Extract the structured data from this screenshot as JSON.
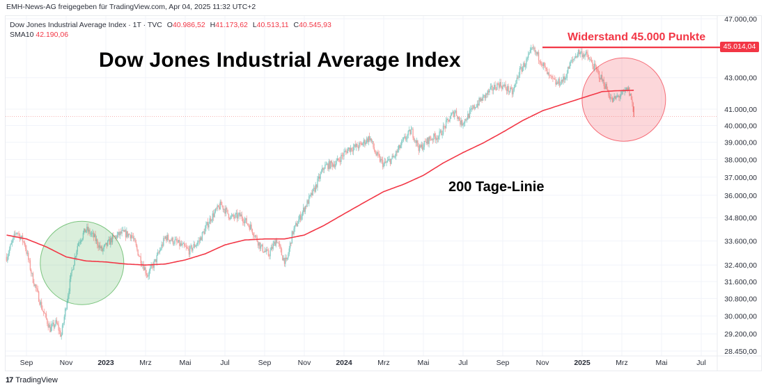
{
  "attribution": "EMH-News-AG freigegeben für TradingView.com, Apr 04, 2025 11:32 UTC+2",
  "legend": {
    "symbol": "Dow Jones Industrial Average Index · 1T · TVC",
    "open_label": "O",
    "open": "40.986,52",
    "high_label": "H",
    "high": "41.173,62",
    "low_label": "L",
    "low": "40.513,11",
    "close_label": "C",
    "close": "40.545,93",
    "sma_label": "SMA10",
    "sma_value": "42.190,06"
  },
  "annotations": {
    "title": "Dow Jones Industrial Average Index",
    "ma_label": "200 Tage-Linie",
    "resistance_label": "Widerstand 45.000 Punkte",
    "resistance_price_tag": "45.014,04"
  },
  "footer": {
    "logo_mark": "17",
    "logo_text": "TradingView"
  },
  "colors": {
    "up": "#26a69a",
    "down": "#ef5350",
    "ma": "#f23645",
    "accent": "#f23645",
    "green_circle": "#4caf50",
    "red_circle": "#f23645"
  },
  "chart_data": {
    "type": "candlestick",
    "title": "Dow Jones Industrial Average Index",
    "interval": "1D",
    "y_scale": "log",
    "ylim": [
      28450,
      47000
    ],
    "y_ticks": [
      {
        "value": 47000,
        "label": "47.000,00"
      },
      {
        "value": 43000,
        "label": "43.000,00"
      },
      {
        "value": 41000,
        "label": "41.000,00"
      },
      {
        "value": 40000,
        "label": "40.000,00"
      },
      {
        "value": 39000,
        "label": "39.000,00"
      },
      {
        "value": 38000,
        "label": "38.000,00"
      },
      {
        "value": 37000,
        "label": "37.000,00"
      },
      {
        "value": 36000,
        "label": "36.000,00"
      },
      {
        "value": 34800,
        "label": "34.800,00"
      },
      {
        "value": 33600,
        "label": "33.600,00"
      },
      {
        "value": 32400,
        "label": "32.400,00"
      },
      {
        "value": 31600,
        "label": "31.600,00"
      },
      {
        "value": 30800,
        "label": "30.800,00"
      },
      {
        "value": 30000,
        "label": "30.000,00"
      },
      {
        "value": 29200,
        "label": "29.200,00"
      },
      {
        "value": 28450,
        "label": "28.450,00"
      }
    ],
    "x_range_months": [
      "2022-08",
      "2025-08"
    ],
    "x_ticks": [
      {
        "month": "2022-09",
        "label": "Sep",
        "bold": false
      },
      {
        "month": "2022-11",
        "label": "Nov",
        "bold": false
      },
      {
        "month": "2023-01",
        "label": "2023",
        "bold": true
      },
      {
        "month": "2023-03",
        "label": "Mrz",
        "bold": false
      },
      {
        "month": "2023-05",
        "label": "Mai",
        "bold": false
      },
      {
        "month": "2023-07",
        "label": "Jul",
        "bold": false
      },
      {
        "month": "2023-09",
        "label": "Sep",
        "bold": false
      },
      {
        "month": "2023-11",
        "label": "Nov",
        "bold": false
      },
      {
        "month": "2024-01",
        "label": "2024",
        "bold": true
      },
      {
        "month": "2024-03",
        "label": "Mrz",
        "bold": false
      },
      {
        "month": "2024-05",
        "label": "Mai",
        "bold": false
      },
      {
        "month": "2024-07",
        "label": "Jul",
        "bold": false
      },
      {
        "month": "2024-09",
        "label": "Sep",
        "bold": false
      },
      {
        "month": "2024-11",
        "label": "Nov",
        "bold": false
      },
      {
        "month": "2025-01",
        "label": "2025",
        "bold": true
      },
      {
        "month": "2025-03",
        "label": "Mrz",
        "bold": false
      },
      {
        "month": "2025-05",
        "label": "Mai",
        "bold": false
      },
      {
        "month": "2025-07",
        "label": "Jul",
        "bold": false
      }
    ],
    "price_path": [
      {
        "t": 0.0,
        "p": 32800
      },
      {
        "t": 0.5,
        "p": 34100
      },
      {
        "t": 0.9,
        "p": 33500
      },
      {
        "t": 1.3,
        "p": 31800
      },
      {
        "t": 1.8,
        "p": 30300
      },
      {
        "t": 2.2,
        "p": 29400
      },
      {
        "t": 2.5,
        "p": 29700
      },
      {
        "t": 2.75,
        "p": 29100
      },
      {
        "t": 3.0,
        "p": 30500
      },
      {
        "t": 3.3,
        "p": 32200
      },
      {
        "t": 3.6,
        "p": 33500
      },
      {
        "t": 4.0,
        "p": 34200
      },
      {
        "t": 4.4,
        "p": 33800
      },
      {
        "t": 4.8,
        "p": 33100
      },
      {
        "t": 5.3,
        "p": 33700
      },
      {
        "t": 5.8,
        "p": 34000
      },
      {
        "t": 6.3,
        "p": 33900
      },
      {
        "t": 6.7,
        "p": 32800
      },
      {
        "t": 7.1,
        "p": 31900
      },
      {
        "t": 7.5,
        "p": 32600
      },
      {
        "t": 8.0,
        "p": 33800
      },
      {
        "t": 8.6,
        "p": 33500
      },
      {
        "t": 9.2,
        "p": 33100
      },
      {
        "t": 9.7,
        "p": 33600
      },
      {
        "t": 10.3,
        "p": 34800
      },
      {
        "t": 10.8,
        "p": 35500
      },
      {
        "t": 11.3,
        "p": 34800
      },
      {
        "t": 11.8,
        "p": 34900
      },
      {
        "t": 12.3,
        "p": 34300
      },
      {
        "t": 12.8,
        "p": 33300
      },
      {
        "t": 13.2,
        "p": 32900
      },
      {
        "t": 13.6,
        "p": 33700
      },
      {
        "t": 13.9,
        "p": 32800
      },
      {
        "t": 14.1,
        "p": 32500
      },
      {
        "t": 14.4,
        "p": 34000
      },
      {
        "t": 15.0,
        "p": 35300
      },
      {
        "t": 15.5,
        "p": 36300
      },
      {
        "t": 16.0,
        "p": 37600
      },
      {
        "t": 16.6,
        "p": 37800
      },
      {
        "t": 17.2,
        "p": 38600
      },
      {
        "t": 17.8,
        "p": 38800
      },
      {
        "t": 18.3,
        "p": 39300
      },
      {
        "t": 18.6,
        "p": 38300
      },
      {
        "t": 19.0,
        "p": 37700
      },
      {
        "t": 19.5,
        "p": 38100
      },
      {
        "t": 20.0,
        "p": 39100
      },
      {
        "t": 20.4,
        "p": 39700
      },
      {
        "t": 20.8,
        "p": 38600
      },
      {
        "t": 21.3,
        "p": 39200
      },
      {
        "t": 21.8,
        "p": 39400
      },
      {
        "t": 22.3,
        "p": 40400
      },
      {
        "t": 22.6,
        "p": 40900
      },
      {
        "t": 22.9,
        "p": 40100
      },
      {
        "t": 23.2,
        "p": 40500
      },
      {
        "t": 23.6,
        "p": 41200
      },
      {
        "t": 24.0,
        "p": 41700
      },
      {
        "t": 24.4,
        "p": 42200
      },
      {
        "t": 24.8,
        "p": 42600
      },
      {
        "t": 25.2,
        "p": 42300
      },
      {
        "t": 25.5,
        "p": 42000
      },
      {
        "t": 25.8,
        "p": 43300
      },
      {
        "t": 26.2,
        "p": 44100
      },
      {
        "t": 26.5,
        "p": 44900
      },
      {
        "t": 26.9,
        "p": 44200
      },
      {
        "t": 27.3,
        "p": 43100
      },
      {
        "t": 27.7,
        "p": 42600
      },
      {
        "t": 28.1,
        "p": 42900
      },
      {
        "t": 28.4,
        "p": 43900
      },
      {
        "t": 28.8,
        "p": 44700
      },
      {
        "t": 29.2,
        "p": 44500
      },
      {
        "t": 29.5,
        "p": 43900
      },
      {
        "t": 29.8,
        "p": 43300
      },
      {
        "t": 30.2,
        "p": 42400
      },
      {
        "t": 30.5,
        "p": 41500
      },
      {
        "t": 30.8,
        "p": 41800
      },
      {
        "t": 31.1,
        "p": 42000
      },
      {
        "t": 31.3,
        "p": 42300
      },
      {
        "t": 31.5,
        "p": 41600
      },
      {
        "t": 31.6,
        "p": 40546
      }
    ],
    "sma200_path": [
      {
        "t": 0.0,
        "p": 33900
      },
      {
        "t": 1.0,
        "p": 33700
      },
      {
        "t": 2.0,
        "p": 33300
      },
      {
        "t": 3.0,
        "p": 32800
      },
      {
        "t": 4.0,
        "p": 32600
      },
      {
        "t": 5.0,
        "p": 32550
      },
      {
        "t": 6.0,
        "p": 32450
      },
      {
        "t": 7.0,
        "p": 32400
      },
      {
        "t": 8.0,
        "p": 32450
      },
      {
        "t": 9.0,
        "p": 32650
      },
      {
        "t": 10.0,
        "p": 32950
      },
      {
        "t": 11.0,
        "p": 33400
      },
      {
        "t": 12.0,
        "p": 33650
      },
      {
        "t": 13.0,
        "p": 33700
      },
      {
        "t": 14.0,
        "p": 33700
      },
      {
        "t": 15.0,
        "p": 33900
      },
      {
        "t": 16.0,
        "p": 34400
      },
      {
        "t": 17.0,
        "p": 35000
      },
      {
        "t": 18.0,
        "p": 35600
      },
      {
        "t": 19.0,
        "p": 36200
      },
      {
        "t": 20.0,
        "p": 36600
      },
      {
        "t": 21.0,
        "p": 37100
      },
      {
        "t": 22.0,
        "p": 37800
      },
      {
        "t": 23.0,
        "p": 38400
      },
      {
        "t": 24.0,
        "p": 38950
      },
      {
        "t": 25.0,
        "p": 39600
      },
      {
        "t": 26.0,
        "p": 40300
      },
      {
        "t": 27.0,
        "p": 40900
      },
      {
        "t": 28.0,
        "p": 41300
      },
      {
        "t": 29.0,
        "p": 41700
      },
      {
        "t": 30.0,
        "p": 42100
      },
      {
        "t": 30.6,
        "p": 42150
      },
      {
        "t": 31.6,
        "p": 42190
      }
    ],
    "horizontal_lines": [
      {
        "name": "resistance",
        "price": 45014.04,
        "from_t": 27.0
      },
      {
        "name": "last-close",
        "price": 40545.93,
        "style": "dotted"
      }
    ],
    "highlight_circles": [
      {
        "name": "green-circle",
        "center_t": 3.8,
        "center_p": 32500,
        "color": "green"
      },
      {
        "name": "red-circle",
        "center_t": 31.1,
        "center_p": 41600,
        "color": "red"
      }
    ]
  }
}
